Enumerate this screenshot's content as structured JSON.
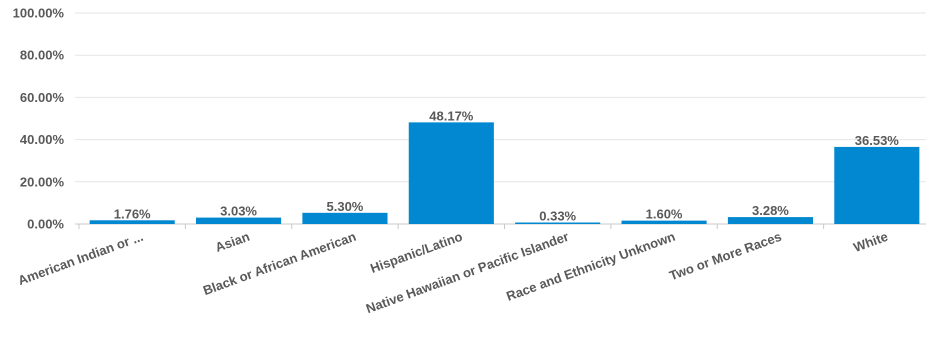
{
  "chart_data": {
    "type": "bar",
    "title": "",
    "xlabel": "",
    "ylabel": "",
    "categories": [
      "American Indian or ...",
      "Asian",
      "Black or African American",
      "Hispanic/Latino",
      "Native Hawaiian or Pacific Islander",
      "Race and Ethnicity Unknown",
      "Two or More Races",
      "White"
    ],
    "values": [
      1.76,
      3.03,
      5.3,
      48.17,
      0.33,
      1.6,
      3.28,
      36.53
    ],
    "data_labels": [
      "1.76%",
      "3.03%",
      "5.30%",
      "48.17%",
      "0.33%",
      "1.60%",
      "3.28%",
      "36.53%"
    ],
    "ylim": [
      0,
      100
    ],
    "yticks": [
      0,
      20,
      40,
      60,
      80,
      100
    ],
    "ytick_labels": [
      "0.00%",
      "20.00%",
      "40.00%",
      "60.00%",
      "80.00%",
      "100.00%"
    ],
    "grid": true,
    "legend": "none",
    "bar_color": "#0288d1"
  }
}
